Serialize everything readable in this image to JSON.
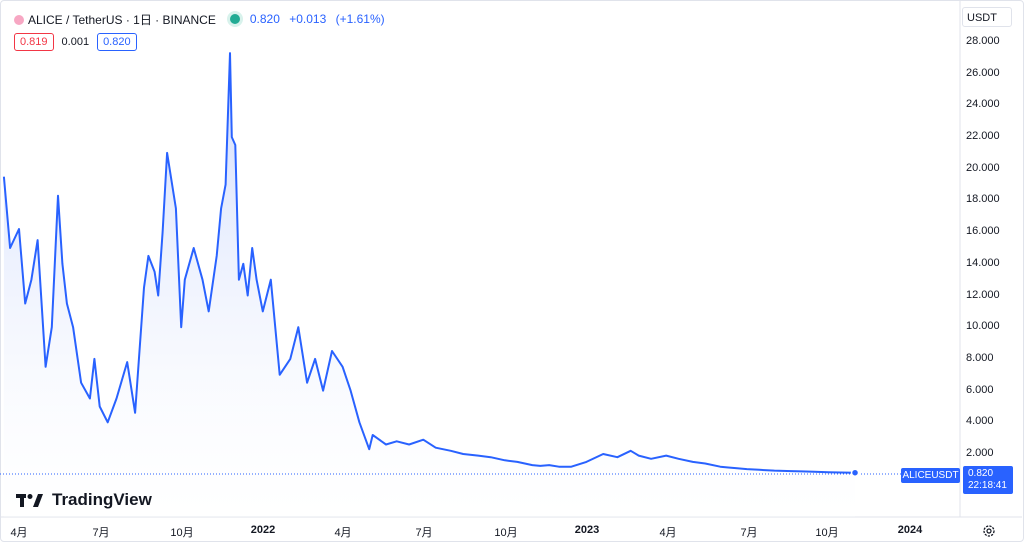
{
  "legend": {
    "title": "ALICE / TetherUS · 1日 · BINANCE",
    "last": "0.820",
    "change": "+0.013",
    "change_pct": "(+1.61%)"
  },
  "quote": {
    "bid": "0.819",
    "spread": "0.001",
    "ask": "0.820"
  },
  "currency_button": "USDT",
  "y_ticks": [
    "28.000",
    "26.000",
    "24.000",
    "22.000",
    "20.000",
    "18.000",
    "16.000",
    "14.000",
    "12.000",
    "10.000",
    "8.000",
    "6.000",
    "4.000",
    "2.000"
  ],
  "x_ticks": [
    {
      "label": "4月",
      "bold": false
    },
    {
      "label": "7月",
      "bold": false
    },
    {
      "label": "10月",
      "bold": false
    },
    {
      "label": "2022",
      "bold": true
    },
    {
      "label": "4月",
      "bold": false
    },
    {
      "label": "7月",
      "bold": false
    },
    {
      "label": "10月",
      "bold": false
    },
    {
      "label": "2023",
      "bold": true
    },
    {
      "label": "4月",
      "bold": false
    },
    {
      "label": "7月",
      "bold": false
    },
    {
      "label": "10月",
      "bold": false
    },
    {
      "label": "2024",
      "bold": true
    }
  ],
  "last_price": {
    "symbol": "ALICEUSDT",
    "price": "0.820",
    "countdown": "22:18:41"
  },
  "brand": "TradingView",
  "colors": {
    "line": "#2962ff",
    "fill_top": "#c9d6fb",
    "up": "#22ab94",
    "down": "#f23645"
  },
  "chart_data": {
    "type": "area",
    "ylim": [
      0,
      29
    ],
    "y_scale": "linear",
    "x": [
      "2021-03-15",
      "2021-03-22",
      "2021-04-01",
      "2021-04-08",
      "2021-04-15",
      "2021-04-22",
      "2021-05-01",
      "2021-05-08",
      "2021-05-15",
      "2021-05-20",
      "2021-05-25",
      "2021-06-01",
      "2021-06-10",
      "2021-06-20",
      "2021-06-25",
      "2021-07-01",
      "2021-07-10",
      "2021-07-20",
      "2021-08-01",
      "2021-08-10",
      "2021-08-20",
      "2021-08-25",
      "2021-09-01",
      "2021-09-05",
      "2021-09-10",
      "2021-09-15",
      "2021-09-25",
      "2021-10-01",
      "2021-10-05",
      "2021-10-15",
      "2021-10-25",
      "2021-11-01",
      "2021-11-10",
      "2021-11-15",
      "2021-11-20",
      "2021-11-25",
      "2021-11-27",
      "2021-12-01",
      "2021-12-05",
      "2021-12-10",
      "2021-12-15",
      "2021-12-20",
      "2021-12-25",
      "2022-01-01",
      "2022-01-10",
      "2022-01-20",
      "2022-02-01",
      "2022-02-10",
      "2022-02-20",
      "2022-03-01",
      "2022-03-10",
      "2022-03-20",
      "2022-04-01",
      "2022-04-10",
      "2022-04-20",
      "2022-05-01",
      "2022-05-05",
      "2022-05-10",
      "2022-05-20",
      "2022-06-01",
      "2022-06-15",
      "2022-07-01",
      "2022-07-15",
      "2022-08-01",
      "2022-08-15",
      "2022-09-01",
      "2022-09-15",
      "2022-10-01",
      "2022-10-15",
      "2022-11-01",
      "2022-11-10",
      "2022-11-20",
      "2022-12-01",
      "2022-12-15",
      "2023-01-01",
      "2023-01-20",
      "2023-02-05",
      "2023-02-20",
      "2023-03-01",
      "2023-03-15",
      "2023-04-01",
      "2023-04-15",
      "2023-05-01",
      "2023-05-15",
      "2023-06-01",
      "2023-06-10",
      "2023-06-20",
      "2023-07-01",
      "2023-07-15",
      "2023-08-01",
      "2023-08-20",
      "2023-09-01",
      "2023-09-15",
      "2023-10-01",
      "2023-10-15",
      "2023-10-31"
    ],
    "series": [
      {
        "values": [
          19.5,
          15.0,
          16.2,
          11.5,
          13.0,
          15.5,
          7.5,
          10.0,
          18.3,
          14.0,
          11.5,
          10.0,
          6.5,
          5.5,
          8.0,
          5.0,
          4.0,
          5.5,
          7.8,
          4.6,
          12.5,
          14.5,
          13.5,
          12.0,
          16.0,
          21.0,
          17.5,
          10.0,
          13.0,
          15.0,
          13.0,
          11.0,
          14.5,
          17.5,
          19.0,
          27.3,
          22.0,
          21.5,
          13.0,
          14.0,
          12.0,
          15.0,
          13.0,
          11.0,
          13.0,
          7.0,
          8.0,
          10.0,
          6.5,
          8.0,
          6.0,
          8.5,
          7.5,
          6.0,
          4.0,
          2.3,
          3.2,
          3.0,
          2.6,
          2.8,
          2.6,
          2.9,
          2.4,
          2.2,
          2.0,
          1.9,
          1.8,
          1.6,
          1.5,
          1.3,
          1.25,
          1.3,
          1.2,
          1.2,
          1.5,
          2.0,
          1.8,
          2.2,
          1.9,
          1.7,
          1.9,
          1.7,
          1.5,
          1.4,
          1.2,
          1.15,
          1.1,
          1.05,
          1.0,
          0.95,
          0.92,
          0.9,
          0.88,
          0.85,
          0.83,
          0.82
        ]
      }
    ]
  }
}
